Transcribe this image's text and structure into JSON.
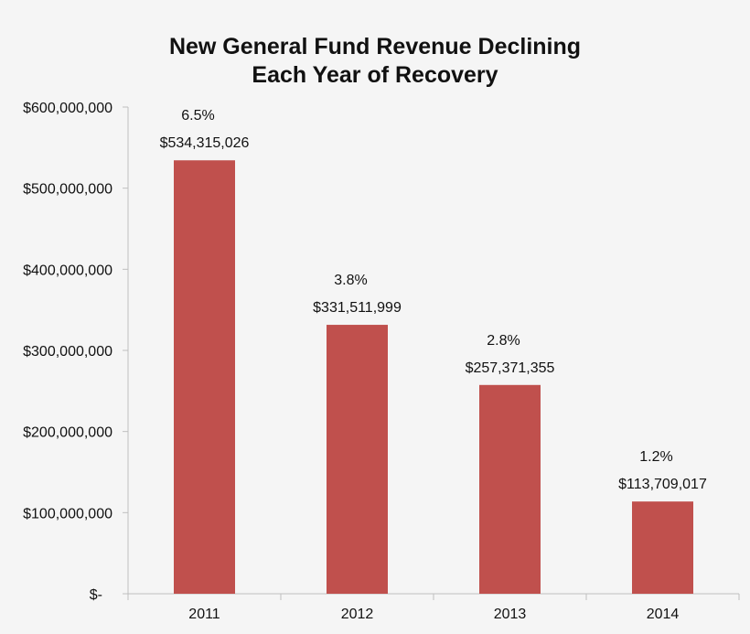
{
  "chart_data": {
    "type": "bar",
    "title_lines": [
      "New General Fund Revenue Declining",
      "Each Year  of Recovery"
    ],
    "categories": [
      "2011",
      "2012",
      "2013",
      "2014"
    ],
    "values": [
      534315026,
      331511999,
      257371355,
      113709017
    ],
    "value_labels": [
      "$534,315,026",
      "$331,511,999",
      "$257,371,355",
      "$113,709,017"
    ],
    "percent_labels": [
      "6.5%",
      "3.8%",
      "2.8%",
      "1.2%"
    ],
    "ylim": [
      0,
      600000000
    ],
    "yticks": [
      0,
      100000000,
      200000000,
      300000000,
      400000000,
      500000000,
      600000000
    ],
    "ytick_labels": [
      "$-",
      "$100,000,000",
      "$200,000,000",
      "$300,000,000",
      "$400,000,000",
      "$500,000,000",
      "$600,000,000"
    ],
    "xlabel": "",
    "ylabel": "",
    "grid": false,
    "legend": "none",
    "bar_color": "#C0504D",
    "axis_color": "#BFBFBF"
  }
}
